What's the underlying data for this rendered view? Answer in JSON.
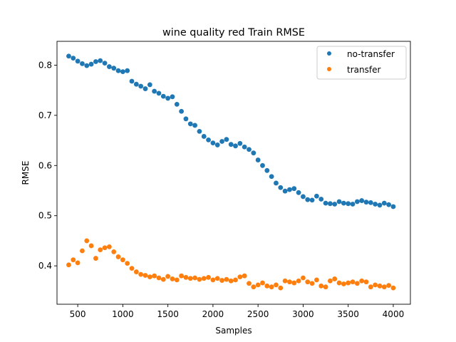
{
  "chart_data": {
    "type": "scatter",
    "title": "wine quality red Train RMSE",
    "xlabel": "Samples",
    "ylabel": "RMSE",
    "xlim": [
      270,
      4190
    ],
    "ylim": [
      0.3235,
      0.8475
    ],
    "xticks": [
      500,
      1000,
      1500,
      2000,
      2500,
      3000,
      3500,
      4000
    ],
    "xtick_labels": [
      "500",
      "1000",
      "1500",
      "2000",
      "2500",
      "3000",
      "3500",
      "4000"
    ],
    "yticks": [
      0.4,
      0.5,
      0.6,
      0.7,
      0.8
    ],
    "ytick_labels": [
      "0.4",
      "0.5",
      "0.6",
      "0.7",
      "0.8"
    ],
    "grid": false,
    "legend_position": "top-right",
    "series": [
      {
        "name": "no-transfer",
        "color": "#1f77b4",
        "x": [
          400,
          450,
          500,
          550,
          600,
          650,
          700,
          750,
          800,
          850,
          900,
          950,
          1000,
          1050,
          1100,
          1150,
          1200,
          1250,
          1300,
          1350,
          1400,
          1450,
          1500,
          1550,
          1600,
          1650,
          1700,
          1750,
          1800,
          1850,
          1900,
          1950,
          2000,
          2050,
          2100,
          2150,
          2200,
          2250,
          2300,
          2350,
          2400,
          2450,
          2500,
          2550,
          2600,
          2650,
          2700,
          2750,
          2800,
          2850,
          2900,
          2950,
          3000,
          3050,
          3100,
          3150,
          3200,
          3250,
          3300,
          3350,
          3400,
          3450,
          3500,
          3550,
          3600,
          3650,
          3700,
          3750,
          3800,
          3850,
          3900,
          3950,
          4000
        ],
        "y": [
          0.818,
          0.814,
          0.808,
          0.803,
          0.799,
          0.802,
          0.807,
          0.809,
          0.804,
          0.797,
          0.794,
          0.789,
          0.787,
          0.789,
          0.768,
          0.762,
          0.758,
          0.753,
          0.761,
          0.748,
          0.744,
          0.738,
          0.734,
          0.737,
          0.722,
          0.708,
          0.693,
          0.683,
          0.68,
          0.668,
          0.658,
          0.651,
          0.645,
          0.641,
          0.648,
          0.652,
          0.642,
          0.639,
          0.644,
          0.637,
          0.632,
          0.625,
          0.611,
          0.6,
          0.59,
          0.578,
          0.565,
          0.556,
          0.549,
          0.552,
          0.554,
          0.546,
          0.538,
          0.532,
          0.531,
          0.539,
          0.533,
          0.525,
          0.524,
          0.523,
          0.528,
          0.525,
          0.524,
          0.523,
          0.528,
          0.53,
          0.527,
          0.526,
          0.523,
          0.521,
          0.525,
          0.522,
          0.518
        ]
      },
      {
        "name": "transfer",
        "color": "#ff7f0e",
        "x": [
          400,
          450,
          500,
          550,
          600,
          650,
          700,
          750,
          800,
          850,
          900,
          950,
          1000,
          1050,
          1100,
          1150,
          1200,
          1250,
          1300,
          1350,
          1400,
          1450,
          1500,
          1550,
          1600,
          1650,
          1700,
          1750,
          1800,
          1850,
          1900,
          1950,
          2000,
          2050,
          2100,
          2150,
          2200,
          2250,
          2300,
          2350,
          2400,
          2450,
          2500,
          2550,
          2600,
          2650,
          2700,
          2750,
          2800,
          2850,
          2900,
          2950,
          3000,
          3050,
          3100,
          3150,
          3200,
          3250,
          3300,
          3350,
          3400,
          3450,
          3500,
          3550,
          3600,
          3650,
          3700,
          3750,
          3800,
          3850,
          3900,
          3950,
          4000
        ],
        "y": [
          0.402,
          0.412,
          0.406,
          0.43,
          0.45,
          0.44,
          0.415,
          0.432,
          0.436,
          0.438,
          0.428,
          0.418,
          0.412,
          0.405,
          0.395,
          0.388,
          0.383,
          0.381,
          0.378,
          0.38,
          0.376,
          0.373,
          0.379,
          0.374,
          0.372,
          0.38,
          0.377,
          0.375,
          0.376,
          0.373,
          0.375,
          0.377,
          0.372,
          0.375,
          0.371,
          0.373,
          0.37,
          0.372,
          0.378,
          0.38,
          0.365,
          0.358,
          0.362,
          0.366,
          0.36,
          0.358,
          0.362,
          0.356,
          0.37,
          0.368,
          0.366,
          0.37,
          0.376,
          0.368,
          0.365,
          0.372,
          0.36,
          0.358,
          0.37,
          0.374,
          0.366,
          0.364,
          0.366,
          0.368,
          0.365,
          0.37,
          0.368,
          0.358,
          0.362,
          0.36,
          0.358,
          0.361,
          0.356
        ]
      }
    ]
  }
}
